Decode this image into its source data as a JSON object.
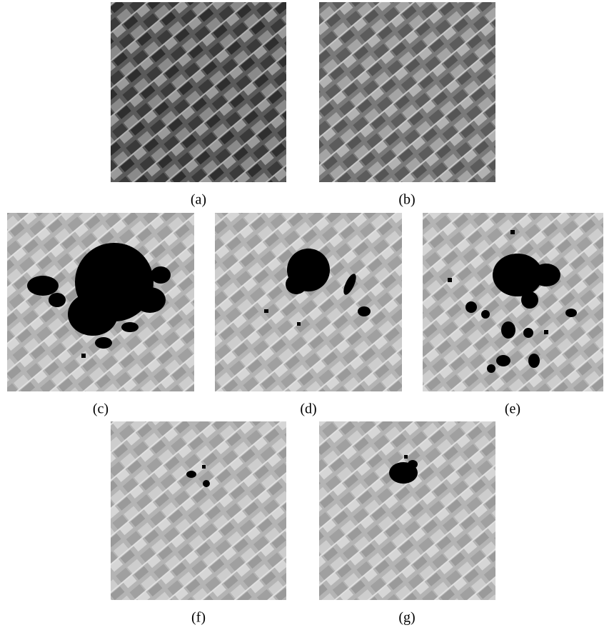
{
  "panels": [
    {
      "label": "(a)"
    },
    {
      "label": "(b)"
    },
    {
      "label": "(c)"
    },
    {
      "label": "(d)"
    },
    {
      "label": "(e)"
    },
    {
      "label": "(f)"
    },
    {
      "label": "(g)"
    }
  ]
}
